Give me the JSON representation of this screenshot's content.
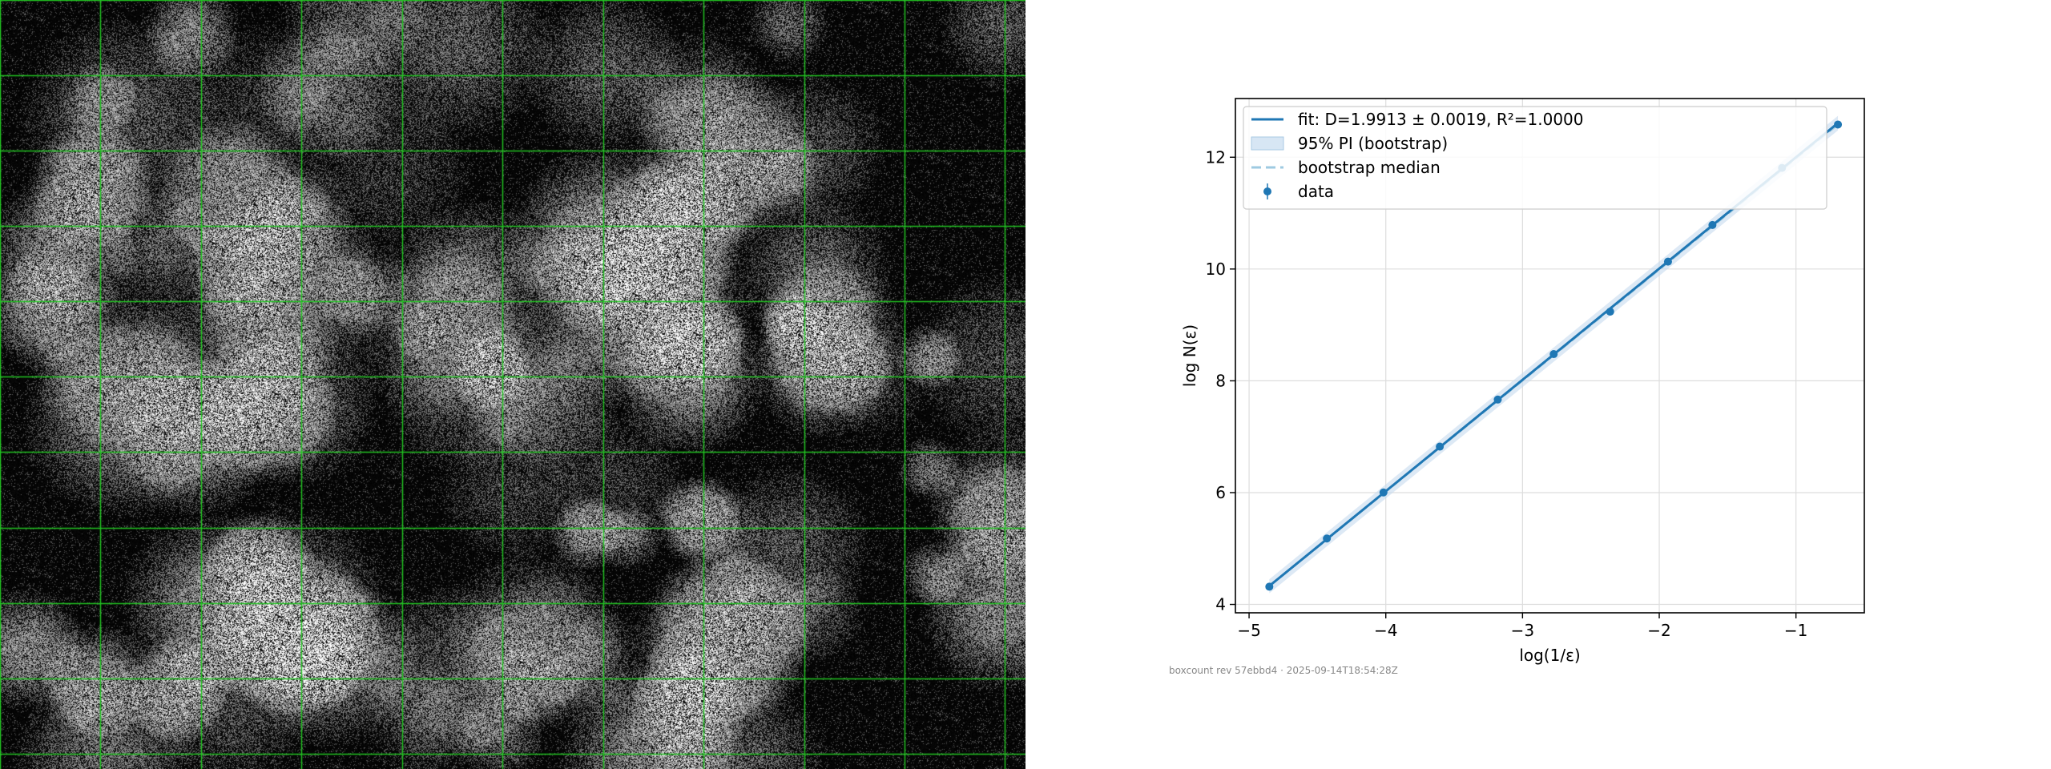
{
  "footer": "boxcount rev 57ebbd4 · 2025-09-14T18:54:28Z",
  "texture": {
    "grid_divisions": 10,
    "grid_color": "#22c322"
  },
  "chart_data": {
    "type": "line",
    "xlabel": "log(1/ε)",
    "ylabel": "log N(ε)",
    "xlim": [
      -5.1,
      -0.5
    ],
    "ylim": [
      3.85,
      13.05
    ],
    "xticks": [
      -5,
      -4,
      -3,
      -2,
      -1
    ],
    "yticks": [
      4,
      6,
      8,
      10,
      12
    ],
    "grid": true,
    "legend_position": "top-left",
    "colors": {
      "fit": "#1f77b4",
      "pi": "#c6dbef",
      "median": "#9ecae1",
      "data": "#1f77b4"
    },
    "series": [
      {
        "name": "data",
        "kind": "errorbar",
        "x": [
          -4.852,
          -4.431,
          -4.017,
          -3.605,
          -3.181,
          -2.772,
          -2.359,
          -1.936,
          -1.611,
          -1.102,
          -0.693
        ],
        "y": [
          4.317,
          5.179,
          6.003,
          6.823,
          7.665,
          8.478,
          9.237,
          10.132,
          10.788,
          11.809,
          12.585
        ]
      },
      {
        "name": "fit: D=1.9913 ± 0.0019, R²=1.0000",
        "kind": "line",
        "x": [
          -4.852,
          -0.693
        ],
        "y": [
          4.33,
          12.611
        ]
      },
      {
        "name": "95% PI (bootstrap)",
        "kind": "band",
        "x": [
          -4.852,
          -0.693
        ],
        "lower": [
          4.2,
          12.48
        ],
        "upper": [
          4.45,
          12.74
        ]
      },
      {
        "name": "bootstrap median",
        "kind": "dashed",
        "x": [
          -4.852,
          -0.693
        ],
        "y": [
          4.33,
          12.59
        ]
      }
    ]
  }
}
